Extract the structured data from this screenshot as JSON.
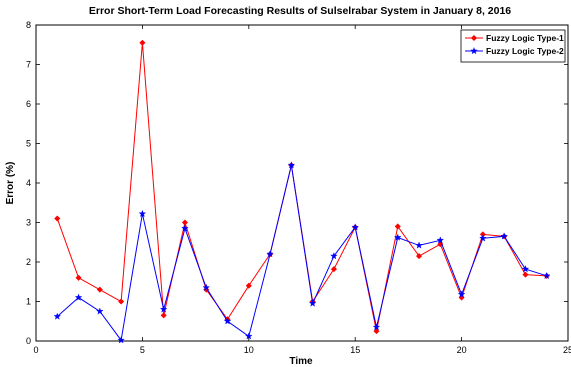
{
  "chart_data": {
    "type": "line",
    "title": "Error Short-Term Load Forecasting Results of Sulselrabar System in January 8, 2016",
    "xlabel": "Time",
    "ylabel": "Error (%)",
    "xlim": [
      0,
      25
    ],
    "ylim": [
      0,
      8
    ],
    "xticks": [
      0,
      5,
      10,
      15,
      20,
      25
    ],
    "yticks": [
      0,
      1,
      2,
      3,
      4,
      5,
      6,
      7,
      8
    ],
    "grid": false,
    "legend_position": "top-right",
    "x": [
      1,
      2,
      3,
      4,
      5,
      6,
      7,
      8,
      9,
      10,
      11,
      12,
      13,
      14,
      15,
      16,
      17,
      18,
      19,
      20,
      21,
      22,
      23,
      24
    ],
    "series": [
      {
        "name": "Fuzzy Logic Type-1",
        "color": "#ff0000",
        "marker": "diamond",
        "values": [
          3.1,
          1.6,
          1.3,
          1.0,
          7.55,
          0.65,
          3.0,
          1.3,
          0.55,
          1.4,
          2.2,
          4.45,
          1.0,
          1.82,
          2.88,
          0.25,
          2.9,
          2.15,
          2.45,
          1.1,
          2.7,
          2.65,
          1.68,
          1.65
        ]
      },
      {
        "name": "Fuzzy Logic Type-2",
        "color": "#0000ff",
        "marker": "star",
        "values": [
          0.62,
          1.1,
          0.75,
          0.02,
          3.22,
          0.8,
          2.85,
          1.35,
          0.5,
          0.12,
          2.2,
          4.45,
          0.95,
          2.15,
          2.88,
          0.35,
          2.62,
          2.42,
          2.55,
          1.18,
          2.6,
          2.65,
          1.82,
          1.65
        ]
      }
    ]
  }
}
